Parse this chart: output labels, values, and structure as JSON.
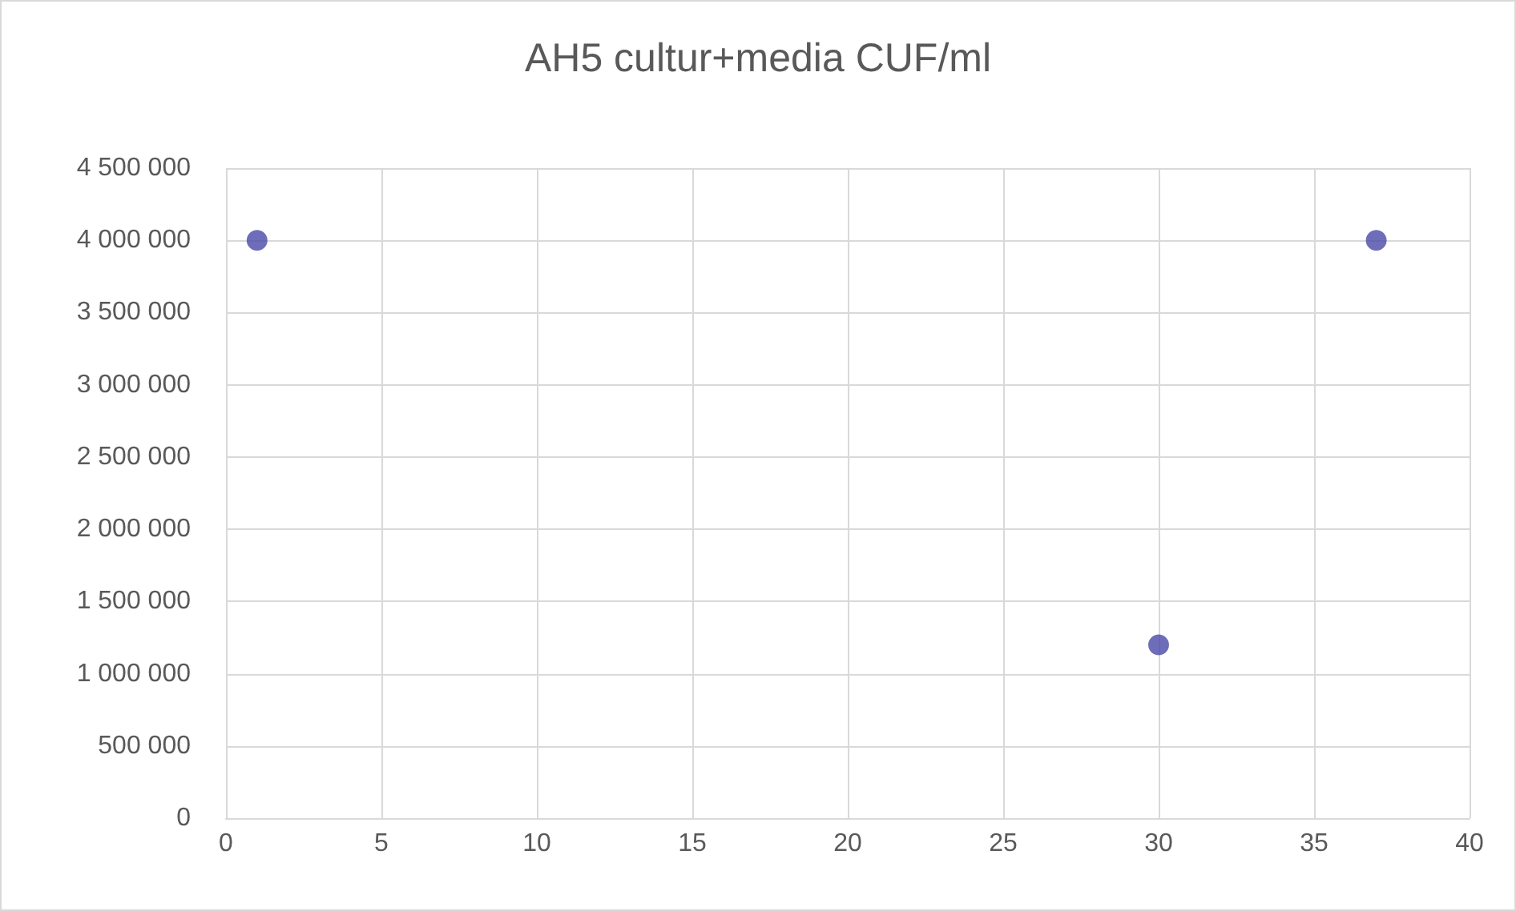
{
  "chart_data": {
    "type": "scatter",
    "title": "AH5 cultur+media CUF/ml",
    "x": [
      1,
      30,
      37
    ],
    "series": [
      {
        "color": "#4848a8",
        "values": [
          4000000,
          1200000,
          4000000
        ]
      }
    ],
    "xlim": [
      0,
      40
    ],
    "xticks": [
      0,
      5,
      10,
      15,
      20,
      25,
      30,
      35,
      40
    ],
    "ylim": [
      0,
      4500000
    ],
    "yticks": [
      0,
      {
        "value": 500000,
        "label": "500 000"
      },
      {
        "value": 1000000,
        "label": "1 000 000"
      },
      {
        "value": 1500000,
        "label": "1 500 000"
      },
      {
        "value": 2000000,
        "label": "2 000 000"
      },
      {
        "value": 2500000,
        "label": "2 500 000"
      },
      {
        "value": 3000000,
        "label": "3 000 000"
      },
      {
        "value": 3500000,
        "label": "3 500 000"
      },
      {
        "value": 4000000,
        "label": "4 000 000"
      },
      {
        "value": 4500000,
        "label": "4 500 000"
      }
    ],
    "grid": true,
    "marker": "circle"
  }
}
